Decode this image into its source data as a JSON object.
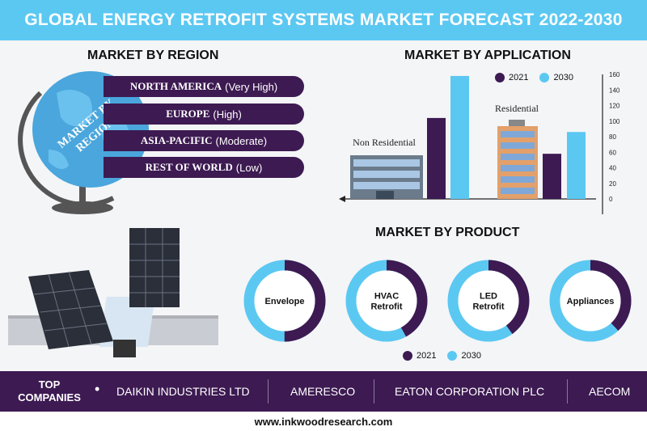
{
  "header": {
    "title": "GLOBAL ENERGY RETROFIT SYSTEMS MARKET FORECAST 2022-2030"
  },
  "region": {
    "title": "MARKET BY REGION",
    "globe_label_line1": "MARKET BY",
    "globe_label_line2": "REGION",
    "items": [
      {
        "name": "NORTH AMERICA",
        "level": "(Very High)"
      },
      {
        "name": "EUROPE",
        "level": "(High)"
      },
      {
        "name": "ASIA-PACIFIC",
        "level": "(Moderate)"
      },
      {
        "name": "REST OF WORLD",
        "level": "(Low)"
      }
    ]
  },
  "application": {
    "title": "MARKET BY APPLICATION",
    "label_non_residential": "Non Residential",
    "label_residential": "Residential"
  },
  "product": {
    "title": "MARKET BY PRODUCT"
  },
  "companies": {
    "label_line1": "TOP",
    "label_line2": "COMPANIES",
    "names": [
      "DAIKIN INDUSTRIES LTD",
      "AMERESCO",
      "EATON CORPORATION PLC",
      "AECOM"
    ]
  },
  "footer": {
    "url": "www.inkwoodresearch.com"
  },
  "colors": {
    "y2021": "#3d1a52",
    "y2030": "#5bc8f2",
    "header": "#5bc8f2"
  },
  "chart_data": [
    {
      "type": "bar",
      "title": "MARKET BY APPLICATION",
      "categories": [
        "Non Residential",
        "Residential"
      ],
      "series": [
        {
          "name": "2021",
          "values": [
            104,
            58
          ]
        },
        {
          "name": "2030",
          "values": [
            158,
            86
          ]
        }
      ],
      "ylim": [
        0,
        160
      ],
      "yticks": [
        0,
        20,
        40,
        60,
        80,
        100,
        120,
        140,
        160
      ],
      "legend": "top"
    },
    {
      "type": "pie",
      "title": "MARKET BY PRODUCT",
      "categories": [
        "Envelope",
        "HVAC Retrofit",
        "LED Retrofit",
        "Appliances"
      ],
      "category_lines": [
        [
          "Envelope"
        ],
        [
          "HVAC",
          "Retrofit"
        ],
        [
          "LED",
          "Retrofit"
        ],
        [
          "Appliances"
        ]
      ],
      "series": [
        {
          "name": "2021",
          "values": [
            50,
            42,
            40,
            38
          ]
        },
        {
          "name": "2030",
          "values": [
            50,
            58,
            60,
            62
          ]
        }
      ],
      "legend": "bottom"
    }
  ]
}
